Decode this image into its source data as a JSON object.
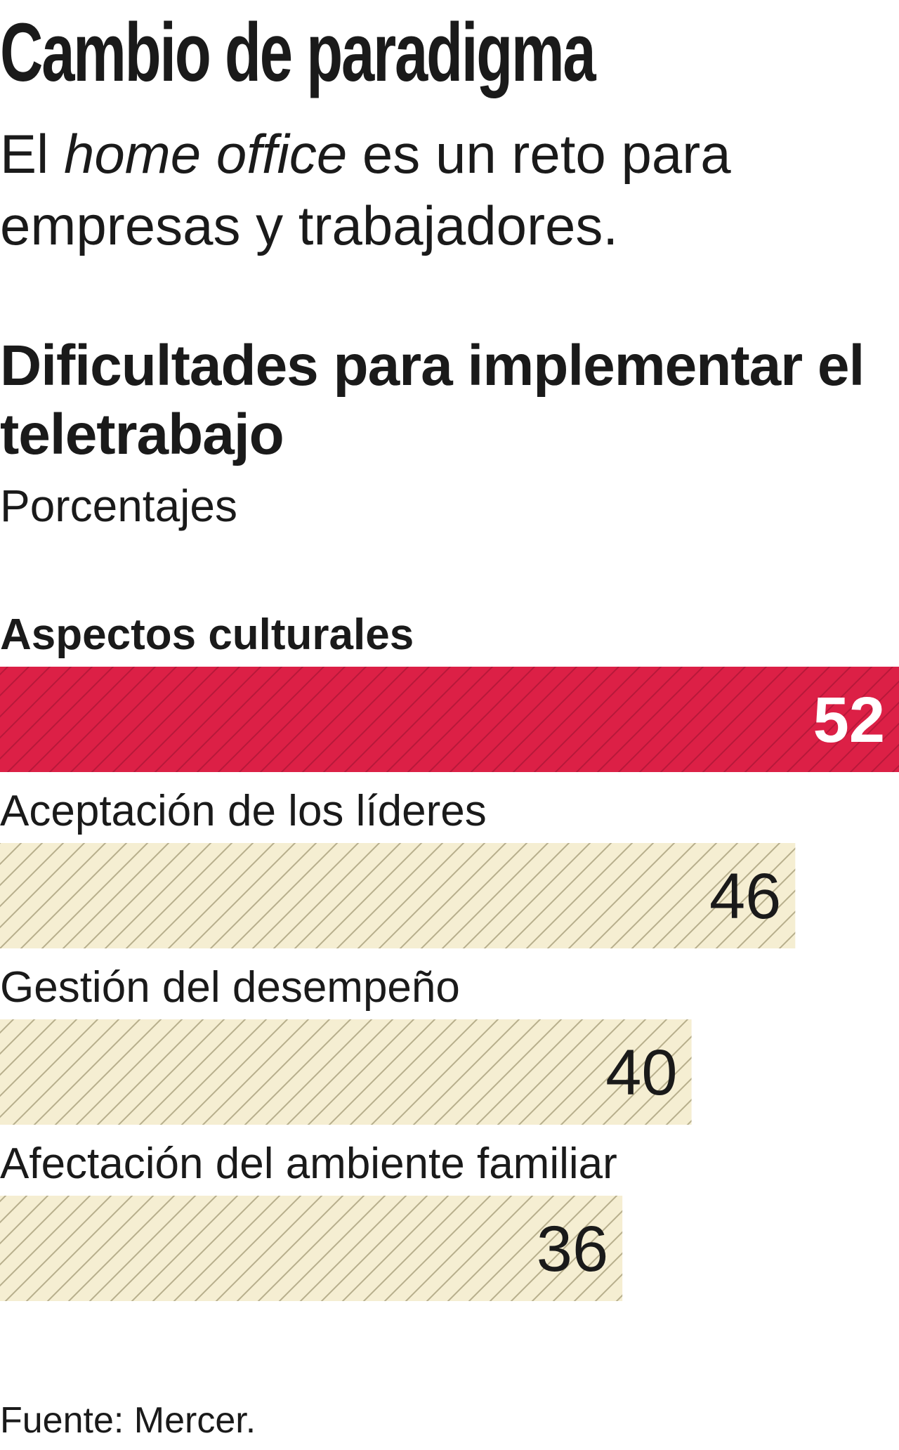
{
  "header": {
    "title": "Cambio de paradigma",
    "deck_pre": "El ",
    "deck_em": "home office",
    "deck_post": " es un reto para empresas y trabajadores."
  },
  "chart_data": {
    "type": "bar",
    "orientation": "horizontal",
    "title": "Dificultades para implementar el teletrabajo",
    "subtitle": "Porcentajes",
    "categories": [
      "Aspectos culturales",
      "Aceptación de los líderes",
      "Gestión del desempeño",
      "Afectación del ambiente familiar"
    ],
    "values": [
      52,
      46,
      40,
      36
    ],
    "value_labels": [
      "52",
      "46",
      "40",
      "36"
    ],
    "highlight_index": 0,
    "xlim": [
      0,
      52
    ],
    "grid": false,
    "colors": {
      "highlight": "#dc2046",
      "highlight_hatch": "#b8183a",
      "highlight_text": "#ffffff",
      "bar": "#f5eed2",
      "bar_hatch": "#b7ae8c",
      "text": "#1a1a1a"
    }
  },
  "footer": {
    "source": "Fuente: Mercer."
  }
}
